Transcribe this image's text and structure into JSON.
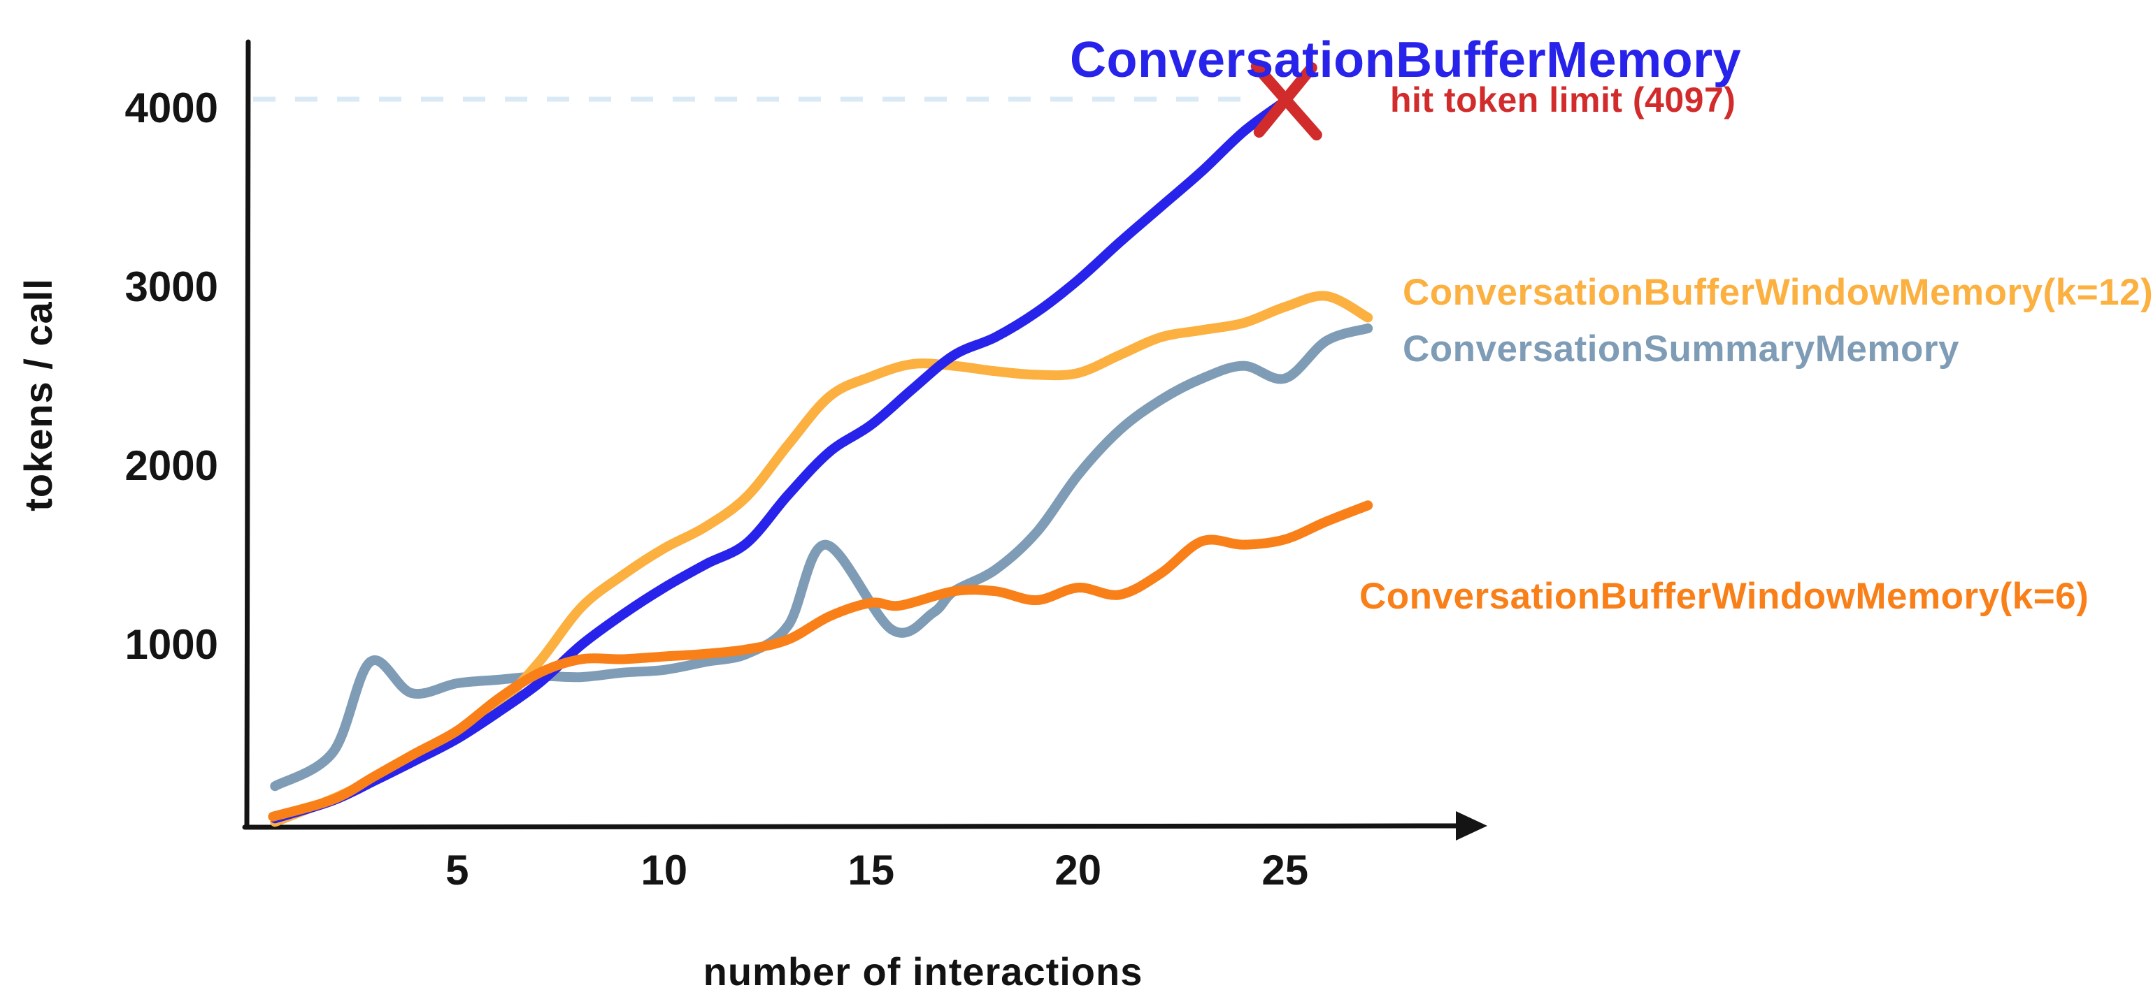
{
  "page": {
    "background": "#ffffff"
  },
  "chart_data": {
    "type": "line",
    "title": "",
    "xlabel": "number of interactions",
    "ylabel": "tokens / call",
    "x_ticks": [
      "5",
      "10",
      "15",
      "20",
      "25"
    ],
    "x_tick_values": [
      5,
      10,
      15,
      20,
      25
    ],
    "y_ticks": [
      "1000",
      "2000",
      "3000",
      "4000"
    ],
    "y_tick_values": [
      1000,
      2000,
      3000,
      4000
    ],
    "xlim": [
      0.5,
      28.5
    ],
    "ylim": [
      0,
      4400
    ],
    "grid": false,
    "legend_position": "labels-at-line-ends",
    "axis_color": "#141414",
    "token_limit_line": {
      "value": 4097,
      "style": "dashed",
      "color": "#d9e9f6"
    },
    "annotation": {
      "text": "hit token limit (4097)",
      "color": "#d22b2b",
      "marker": "x-marker",
      "marker_color": "#d22b2b",
      "marker_at": {
        "x": 25,
        "y": 4097
      }
    },
    "series": [
      {
        "name": "ConversationBufferMemory",
        "color": "#2823ea",
        "ends_at_limit": true,
        "points": [
          [
            0.6,
            30
          ],
          [
            2,
            130
          ],
          [
            3,
            240
          ],
          [
            4,
            355
          ],
          [
            5,
            475
          ],
          [
            6,
            625
          ],
          [
            7,
            790
          ],
          [
            8,
            1000
          ],
          [
            9,
            1170
          ],
          [
            10,
            1320
          ],
          [
            11,
            1450
          ],
          [
            12,
            1570
          ],
          [
            13,
            1840
          ],
          [
            14,
            2080
          ],
          [
            15,
            2230
          ],
          [
            16,
            2430
          ],
          [
            17,
            2620
          ],
          [
            18,
            2720
          ],
          [
            19,
            2860
          ],
          [
            20,
            3040
          ],
          [
            21,
            3250
          ],
          [
            22,
            3450
          ],
          [
            23,
            3650
          ],
          [
            24,
            3870
          ],
          [
            25,
            4040
          ]
        ]
      },
      {
        "name": "ConversationBufferWindowMemory(k=12)",
        "color": "#fbb040",
        "ends_at_limit": false,
        "points": [
          [
            0.6,
            10
          ],
          [
            2,
            140
          ],
          [
            3,
            250
          ],
          [
            4,
            365
          ],
          [
            5,
            485
          ],
          [
            6,
            660
          ],
          [
            7,
            910
          ],
          [
            8,
            1210
          ],
          [
            9,
            1390
          ],
          [
            10,
            1540
          ],
          [
            11,
            1660
          ],
          [
            12,
            1830
          ],
          [
            13,
            2120
          ],
          [
            14,
            2390
          ],
          [
            15,
            2500
          ],
          [
            16,
            2570
          ],
          [
            17,
            2560
          ],
          [
            18,
            2530
          ],
          [
            19,
            2510
          ],
          [
            20,
            2520
          ],
          [
            21,
            2620
          ],
          [
            22,
            2720
          ],
          [
            23,
            2760
          ],
          [
            24,
            2800
          ],
          [
            25,
            2890
          ],
          [
            26,
            2950
          ],
          [
            27,
            2830
          ]
        ]
      },
      {
        "name": "ConversationSummaryMemory",
        "color": "#7f9cb6",
        "ends_at_limit": false,
        "points": [
          [
            0.6,
            210
          ],
          [
            2,
            400
          ],
          [
            2.9,
            905
          ],
          [
            3.9,
            730
          ],
          [
            5,
            785
          ],
          [
            6,
            805
          ],
          [
            7,
            825
          ],
          [
            8,
            820
          ],
          [
            9,
            845
          ],
          [
            10,
            860
          ],
          [
            11,
            905
          ],
          [
            12,
            950
          ],
          [
            13,
            1110
          ],
          [
            13.9,
            1560
          ],
          [
            15.5,
            1085
          ],
          [
            16.5,
            1180
          ],
          [
            17,
            1300
          ],
          [
            18,
            1420
          ],
          [
            19,
            1630
          ],
          [
            20,
            1950
          ],
          [
            21,
            2200
          ],
          [
            22,
            2370
          ],
          [
            23,
            2490
          ],
          [
            24,
            2560
          ],
          [
            25,
            2490
          ],
          [
            26,
            2700
          ],
          [
            27,
            2770
          ]
        ]
      },
      {
        "name": "ConversationBufferWindowMemory(k=6)",
        "color": "#f97f18",
        "ends_at_limit": false,
        "points": [
          [
            0.55,
            40
          ],
          [
            2,
            135
          ],
          [
            3,
            265
          ],
          [
            4,
            395
          ],
          [
            5,
            520
          ],
          [
            6,
            700
          ],
          [
            7,
            845
          ],
          [
            8,
            920
          ],
          [
            9,
            920
          ],
          [
            10,
            935
          ],
          [
            11,
            950
          ],
          [
            12,
            975
          ],
          [
            13,
            1030
          ],
          [
            14,
            1160
          ],
          [
            15,
            1235
          ],
          [
            15.7,
            1220
          ],
          [
            17,
            1300
          ],
          [
            18,
            1300
          ],
          [
            19,
            1250
          ],
          [
            20,
            1320
          ],
          [
            21,
            1280
          ],
          [
            22,
            1400
          ],
          [
            23,
            1580
          ],
          [
            24,
            1560
          ],
          [
            25,
            1590
          ],
          [
            26,
            1690
          ],
          [
            27,
            1780
          ]
        ]
      }
    ]
  }
}
